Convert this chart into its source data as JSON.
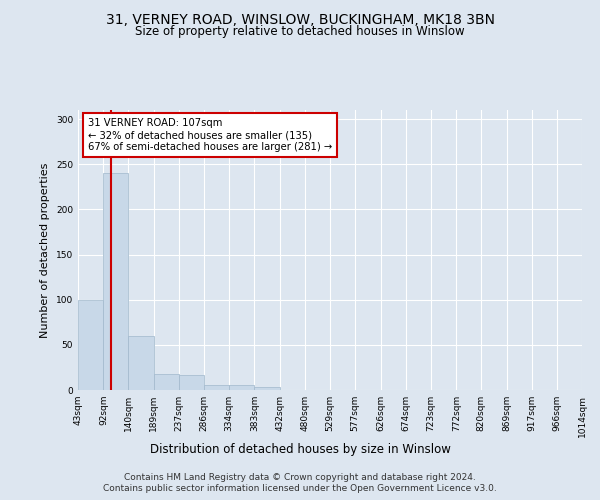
{
  "title1": "31, VERNEY ROAD, WINSLOW, BUCKINGHAM, MK18 3BN",
  "title2": "Size of property relative to detached houses in Winslow",
  "xlabel": "Distribution of detached houses by size in Winslow",
  "ylabel": "Number of detached properties",
  "bin_labels": [
    "43sqm",
    "92sqm",
    "140sqm",
    "189sqm",
    "237sqm",
    "286sqm",
    "334sqm",
    "383sqm",
    "432sqm",
    "480sqm",
    "529sqm",
    "577sqm",
    "626sqm",
    "674sqm",
    "723sqm",
    "772sqm",
    "820sqm",
    "869sqm",
    "917sqm",
    "966sqm",
    "1014sqm"
  ],
  "bin_edges": [
    43,
    92,
    140,
    189,
    237,
    286,
    334,
    383,
    432,
    480,
    529,
    577,
    626,
    674,
    723,
    772,
    820,
    869,
    917,
    966,
    1014
  ],
  "bar_heights": [
    100,
    240,
    60,
    18,
    17,
    6,
    5,
    3,
    0,
    0,
    0,
    0,
    0,
    0,
    0,
    0,
    0,
    0,
    0,
    0
  ],
  "bar_color": "#c8d8e8",
  "bar_edge_color": "#a0b8cc",
  "red_line_x": 107,
  "red_line_color": "#cc0000",
  "ylim": [
    0,
    310
  ],
  "yticks": [
    0,
    50,
    100,
    150,
    200,
    250,
    300
  ],
  "annotation_text": "31 VERNEY ROAD: 107sqm\n← 32% of detached houses are smaller (135)\n67% of semi-detached houses are larger (281) →",
  "annotation_box_color": "#ffffff",
  "annotation_box_edge": "#cc0000",
  "footer1": "Contains HM Land Registry data © Crown copyright and database right 2024.",
  "footer2": "Contains public sector information licensed under the Open Government Licence v3.0.",
  "bg_color": "#dde6f0",
  "plot_bg_color": "#dde6f0"
}
